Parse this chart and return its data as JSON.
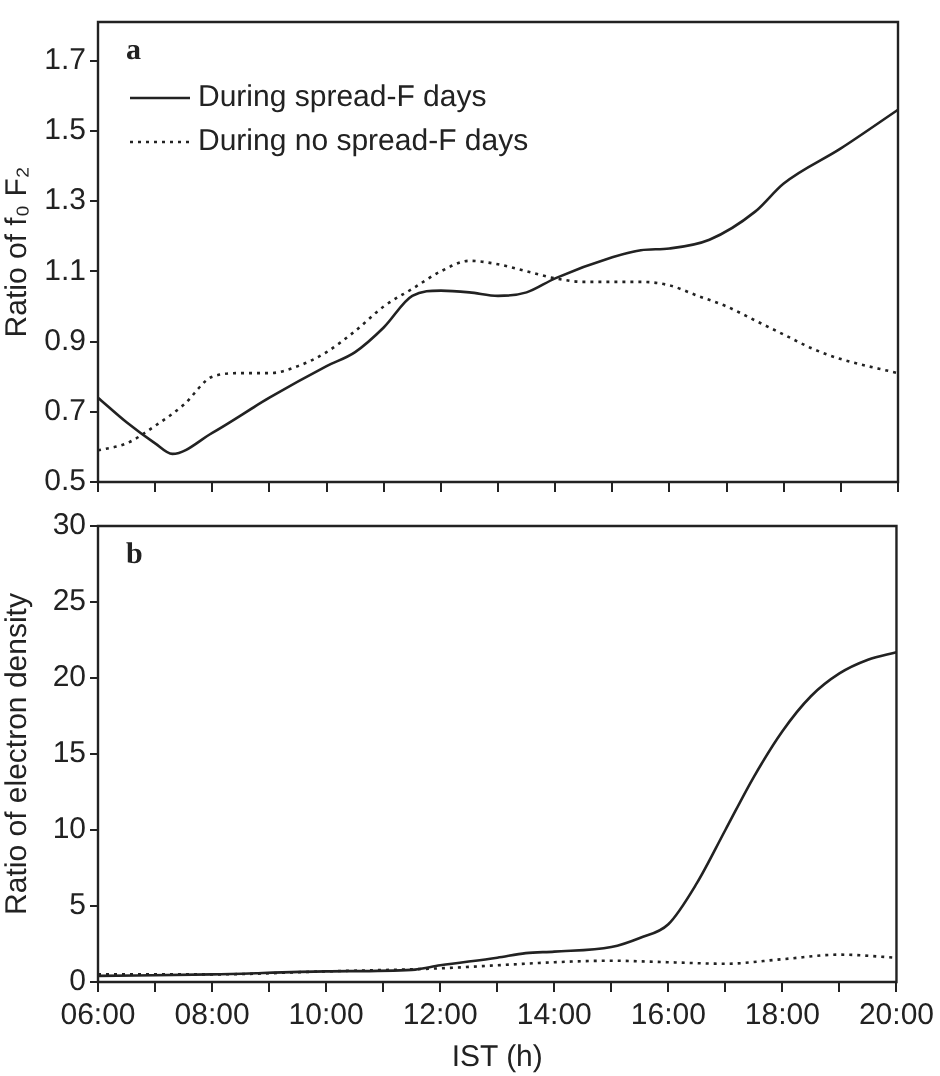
{
  "chart_data": [
    {
      "type": "line",
      "ylabel": "Ratio of f₀ F₂",
      "annotations": [
        "a"
      ],
      "legend": "top left",
      "grid": false,
      "tick_labels": "y",
      "marker": "none",
      "xlim": [
        6,
        20
      ],
      "xticks": [
        {
          "value": 6,
          "label": null
        },
        {
          "value": 7,
          "label": null
        },
        {
          "value": 8,
          "label": null
        },
        {
          "value": 9,
          "label": null
        },
        {
          "value": 10,
          "label": null
        },
        {
          "value": 11,
          "label": null
        },
        {
          "value": 12,
          "label": null
        },
        {
          "value": 13,
          "label": null
        },
        {
          "value": 14,
          "label": null
        },
        {
          "value": 15,
          "label": null
        },
        {
          "value": 16,
          "label": null
        },
        {
          "value": 17,
          "label": null
        },
        {
          "value": 18,
          "label": null
        },
        {
          "value": 19,
          "label": null
        },
        {
          "value": 20,
          "label": null
        }
      ],
      "ylim": [
        0.5,
        1.81
      ],
      "yticks": [
        {
          "value": 0.5,
          "label": "0.5"
        },
        {
          "value": 0.7,
          "label": "0.7"
        },
        {
          "value": 0.9,
          "label": "0.9"
        },
        {
          "value": 1.1,
          "label": "1.1"
        },
        {
          "value": 1.3,
          "label": "1.3"
        },
        {
          "value": 1.5,
          "label": "1.5"
        },
        {
          "value": 1.7,
          "label": "1.7"
        }
      ],
      "series": [
        {
          "name": "During spread-F days",
          "color": "#222222",
          "line_style": "solid",
          "x": [
            6,
            6.5,
            7,
            7.3,
            8,
            9,
            10,
            10.5,
            11,
            11.5,
            12,
            12.5,
            13,
            13.5,
            14,
            15,
            15.5,
            16,
            16.7,
            17.5,
            18,
            19,
            20
          ],
          "values": [
            0.74,
            0.67,
            0.61,
            0.58,
            0.64,
            0.74,
            0.83,
            0.87,
            0.94,
            1.03,
            1.045,
            1.04,
            1.03,
            1.04,
            1.08,
            1.14,
            1.16,
            1.165,
            1.19,
            1.27,
            1.35,
            1.45,
            1.56
          ]
        },
        {
          "name": "During no spread-F days",
          "color": "#222222",
          "line_style": "dotted",
          "x": [
            6,
            6.5,
            7,
            7.5,
            8,
            8.5,
            9,
            9.5,
            10,
            10.5,
            11,
            11.5,
            12,
            12.5,
            13,
            13.5,
            14,
            14.5,
            15,
            15.5,
            16,
            16.5,
            17,
            17.5,
            18,
            18.5,
            19,
            20
          ],
          "values": [
            0.59,
            0.61,
            0.66,
            0.72,
            0.8,
            0.81,
            0.81,
            0.83,
            0.87,
            0.93,
            1.0,
            1.05,
            1.1,
            1.13,
            1.12,
            1.1,
            1.08,
            1.07,
            1.07,
            1.07,
            1.06,
            1.03,
            1.0,
            0.96,
            0.92,
            0.88,
            0.85,
            0.81
          ]
        }
      ]
    },
    {
      "type": "line",
      "xlabel": "IST (h)",
      "ylabel": "Ratio of electron density",
      "annotations": [
        "b"
      ],
      "grid": false,
      "marker": "none",
      "xlim": [
        6,
        20
      ],
      "xticks": [
        {
          "value": 6,
          "label": "06:00"
        },
        {
          "value": 7,
          "label": null
        },
        {
          "value": 8,
          "label": "08:00"
        },
        {
          "value": 9,
          "label": null
        },
        {
          "value": 10,
          "label": "10:00"
        },
        {
          "value": 11,
          "label": null
        },
        {
          "value": 12,
          "label": "12:00"
        },
        {
          "value": 13,
          "label": null
        },
        {
          "value": 14,
          "label": "14:00"
        },
        {
          "value": 15,
          "label": null
        },
        {
          "value": 16,
          "label": "16:00"
        },
        {
          "value": 17,
          "label": null
        },
        {
          "value": 18,
          "label": "18:00"
        },
        {
          "value": 19,
          "label": null
        },
        {
          "value": 20,
          "label": "20:00"
        }
      ],
      "ylim": [
        0,
        30
      ],
      "yticks": [
        0,
        5,
        10,
        15,
        20,
        25,
        30
      ],
      "series": [
        {
          "color": "#222222",
          "line_style": "solid",
          "x": [
            6,
            8,
            10,
            11.5,
            12,
            13,
            13.5,
            14,
            15,
            15.5,
            16,
            16.5,
            17,
            17.5,
            18,
            18.5,
            19,
            19.5,
            20
          ],
          "values": [
            0.4,
            0.5,
            0.7,
            0.8,
            1.1,
            1.6,
            1.9,
            2.0,
            2.3,
            2.9,
            3.8,
            6.5,
            10,
            13.5,
            16.5,
            18.8,
            20.3,
            21.2,
            21.7
          ]
        },
        {
          "color": "#222222",
          "line_style": "dotted",
          "x": [
            6,
            8,
            10,
            12,
            13,
            14,
            15,
            16,
            17,
            18,
            19,
            20
          ],
          "values": [
            0.5,
            0.5,
            0.7,
            0.9,
            1.1,
            1.3,
            1.4,
            1.3,
            1.2,
            1.5,
            1.8,
            1.6
          ]
        }
      ]
    }
  ]
}
